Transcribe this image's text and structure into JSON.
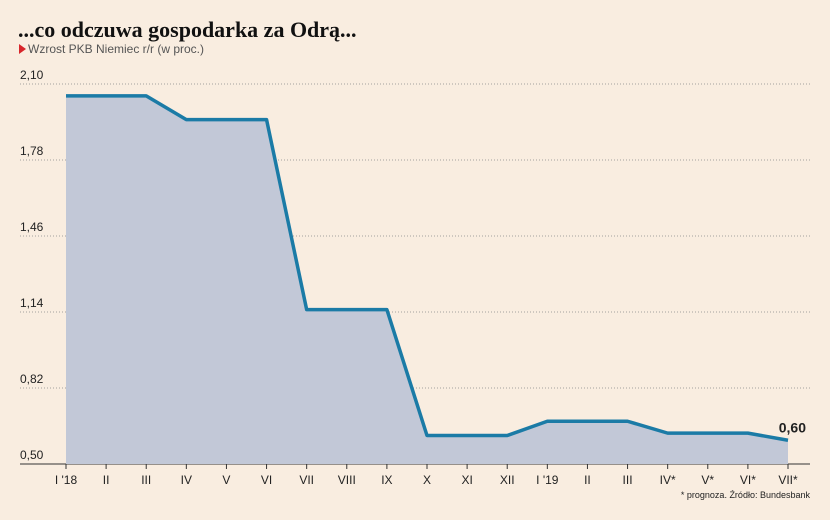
{
  "chart_data": {
    "type": "area",
    "title": "...co odczuwa gospodarka za Odrą...",
    "subtitle": "Wzrost PKB Niemiec r/r (w proc.)",
    "footnote": "* prognoza. Źródło: Bundesbank",
    "categories": [
      "I '18",
      "II",
      "III",
      "IV",
      "V",
      "VI",
      "VII",
      "VIII",
      "IX",
      "X",
      "XI",
      "XII",
      "I '19",
      "II",
      "III",
      "IV*",
      "V*",
      "VI*",
      "VII*"
    ],
    "values": [
      2.05,
      2.05,
      2.05,
      1.95,
      1.95,
      1.95,
      1.15,
      1.15,
      1.15,
      0.62,
      0.62,
      0.62,
      0.68,
      0.68,
      0.68,
      0.63,
      0.63,
      0.63,
      0.6
    ],
    "value_labels": [
      null,
      null,
      null,
      null,
      null,
      null,
      null,
      null,
      null,
      null,
      null,
      null,
      null,
      null,
      null,
      null,
      null,
      null,
      "0,60"
    ],
    "color": "#1b7ba6",
    "fill": "#c2c8d7",
    "ylim": [
      0.5,
      2.1
    ],
    "yticks": [
      {
        "value": 0.5,
        "label": "0,50"
      },
      {
        "value": 0.82,
        "label": "0,82"
      },
      {
        "value": 1.14,
        "label": "1,14"
      },
      {
        "value": 1.46,
        "label": "1,46"
      },
      {
        "value": 1.78,
        "label": "1,78"
      },
      {
        "value": 2.1,
        "label": "2,10"
      }
    ],
    "grid": true
  }
}
